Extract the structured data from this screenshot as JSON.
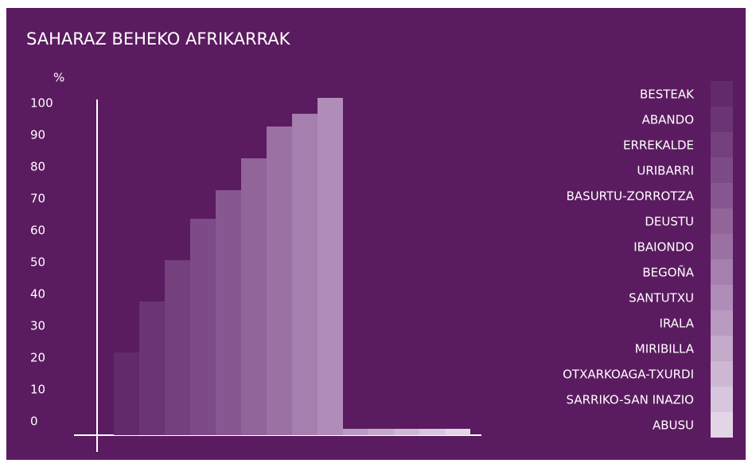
{
  "chart_data": {
    "type": "bar",
    "title": "SAHARAZ BEHEKO AFRIKARRAK",
    "y_label": "%",
    "categories": [
      "BESTEAK",
      "ABANDO",
      "ERREKALDE",
      "URIBARRI",
      "BASURTU-ZORROTZA",
      "DEUSTU",
      "IBAIONDO",
      "BEGOÑA",
      "SANTUTXU",
      "IRALA",
      "MIRIBILLA",
      "OTXARKOAGA-TXURDI",
      "SARRIKO-SAN INAZIO",
      "ABUSU"
    ],
    "values": [
      26,
      42,
      55,
      68,
      77,
      87,
      97,
      101,
      106,
      2,
      2,
      2,
      2,
      2
    ],
    "colors": [
      "#622a6c",
      "#6b3575",
      "#74407e",
      "#7d4b87",
      "#875791",
      "#91649a",
      "#9b71a4",
      "#a57fae",
      "#af8db8",
      "#b99bc1",
      "#c3a9ca",
      "#cdb8d4",
      "#d7c6dd",
      "#e1d5e6"
    ],
    "ylim": [
      0,
      106
    ],
    "yticks": [
      0,
      10,
      20,
      30,
      40,
      50,
      60,
      70,
      80,
      90,
      100
    ]
  }
}
